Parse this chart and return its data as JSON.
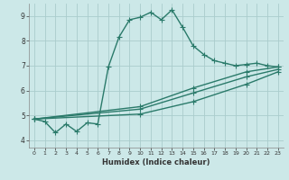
{
  "xlabel": "Humidex (Indice chaleur)",
  "xlim": [
    -0.5,
    23.5
  ],
  "ylim": [
    3.7,
    9.5
  ],
  "yticks": [
    4,
    5,
    6,
    7,
    8,
    9
  ],
  "xticks": [
    0,
    1,
    2,
    3,
    4,
    5,
    6,
    7,
    8,
    9,
    10,
    11,
    12,
    13,
    14,
    15,
    16,
    17,
    18,
    19,
    20,
    21,
    22,
    23
  ],
  "bg_color": "#cce8e8",
  "grid_color": "#aacccc",
  "line_color": "#2a7a6a",
  "line_width": 1.0,
  "marker": "+",
  "marker_size": 4,
  "curves": [
    {
      "x": [
        0,
        1,
        2,
        3,
        4,
        5,
        6,
        7,
        8,
        9,
        10,
        11,
        12,
        13,
        14,
        15,
        16,
        17,
        18,
        19,
        20,
        21,
        22,
        23
      ],
      "y": [
        4.85,
        4.75,
        4.3,
        4.65,
        4.35,
        4.7,
        4.65,
        6.95,
        8.15,
        8.85,
        8.95,
        9.15,
        8.85,
        9.25,
        8.55,
        7.8,
        7.45,
        7.2,
        7.1,
        7.0,
        7.05,
        7.1,
        7.0,
        6.95
      ]
    },
    {
      "x": [
        0,
        10,
        15,
        20,
        23
      ],
      "y": [
        4.85,
        5.35,
        6.1,
        6.75,
        6.95
      ]
    },
    {
      "x": [
        0,
        10,
        15,
        20,
        23
      ],
      "y": [
        4.85,
        5.25,
        5.9,
        6.55,
        6.85
      ]
    },
    {
      "x": [
        0,
        10,
        15,
        20,
        23
      ],
      "y": [
        4.85,
        5.05,
        5.55,
        6.25,
        6.75
      ]
    }
  ]
}
